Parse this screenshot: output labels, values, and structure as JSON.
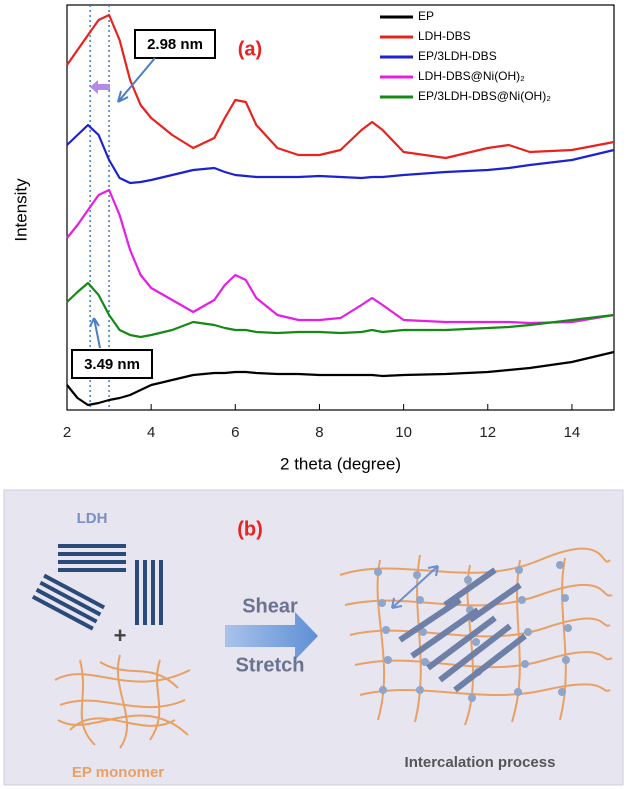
{
  "chart_data": {
    "type": "line",
    "xlabel": "2 theta (degree)",
    "ylabel": "Intensity",
    "xlim": [
      2,
      15
    ],
    "xticks": [
      2,
      4,
      6,
      8,
      10,
      12,
      14
    ],
    "ylim": [
      0,
      405
    ],
    "legend": "upper right",
    "x": [
      2,
      2.25,
      2.5,
      2.75,
      3,
      3.25,
      3.5,
      3.75,
      4,
      4.5,
      5,
      5.5,
      5.75,
      6,
      6.25,
      6.5,
      7,
      7.5,
      8,
      8.5,
      9,
      9.25,
      9.5,
      10,
      11,
      12,
      12.5,
      13,
      14,
      15
    ],
    "series": [
      {
        "name": "EP",
        "color": "#000000",
        "values": [
          25,
          12,
          5,
          7,
          10,
          12,
          15,
          20,
          25,
          30,
          35,
          37,
          37,
          38,
          38,
          37,
          36,
          36,
          35,
          35,
          35,
          35,
          34,
          35,
          36,
          38,
          40,
          42,
          48,
          58
        ]
      },
      {
        "name": "LDH-DBS",
        "color": "#e8221e",
        "values": [
          345,
          360,
          375,
          390,
          395,
          370,
          330,
          305,
          292,
          275,
          262,
          272,
          292,
          310,
          308,
          285,
          262,
          255,
          255,
          260,
          280,
          288,
          280,
          258,
          252,
          262,
          265,
          258,
          260,
          268
        ]
      },
      {
        "name": "EP/3LDH-DBS",
        "color": "#1d22d0",
        "values": [
          265,
          275,
          285,
          275,
          250,
          232,
          227,
          228,
          230,
          235,
          240,
          242,
          238,
          235,
          234,
          233,
          233,
          233,
          234,
          233,
          232,
          233,
          233,
          235,
          238,
          240,
          242,
          245,
          250,
          260
        ]
      },
      {
        "name": "LDH-DBS@Ni(OH)₂",
        "color": "#e51ee5",
        "values": [
          172,
          185,
          200,
          215,
          220,
          195,
          160,
          135,
          122,
          110,
          98,
          110,
          125,
          135,
          130,
          112,
          95,
          90,
          90,
          92,
          105,
          112,
          105,
          90,
          88,
          88,
          88,
          87,
          88,
          95
        ]
      },
      {
        "name": "EP/3LDH-DBS@Ni(OH)₂",
        "color": "#148a14",
        "values": [
          108,
          118,
          127,
          115,
          95,
          80,
          75,
          73,
          75,
          80,
          88,
          85,
          82,
          80,
          80,
          78,
          77,
          78,
          78,
          77,
          78,
          80,
          78,
          80,
          80,
          82,
          83,
          85,
          90,
          95
        ]
      }
    ],
    "reference_lines": [
      2.55,
      3.0
    ],
    "panel_label": "(a)",
    "annotations": [
      "2.98 nm",
      "3.49 nm"
    ]
  },
  "schematic": {
    "panel_label": "(b)",
    "ldh": "LDH",
    "plus": "+",
    "shear": "Shear",
    "stretch": "Stretch",
    "monomer": "EP monomer",
    "result": "Intercalation process"
  }
}
